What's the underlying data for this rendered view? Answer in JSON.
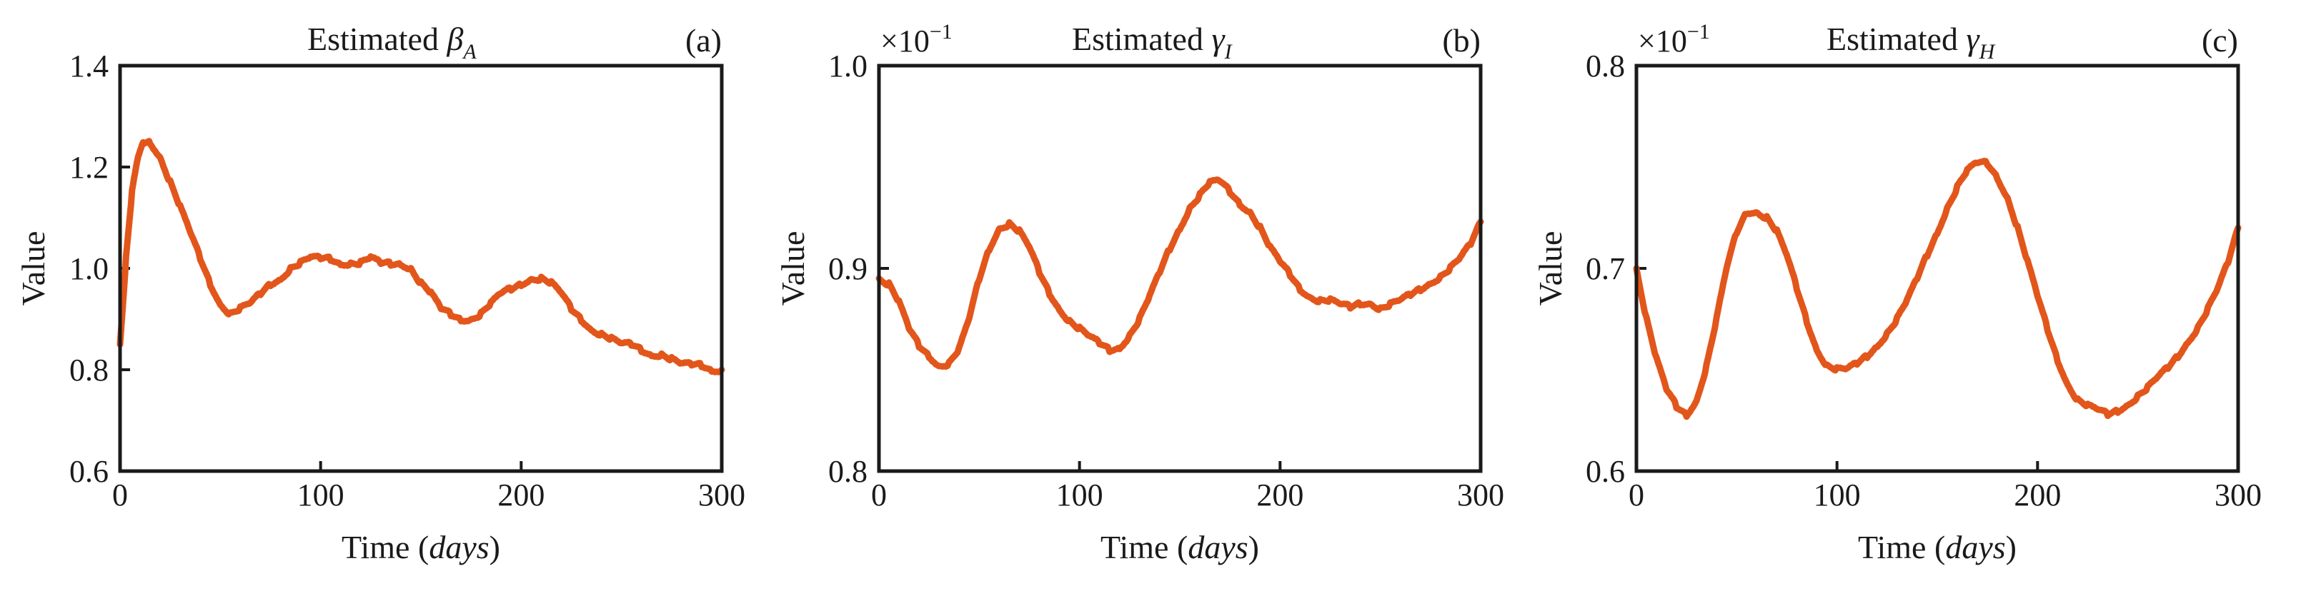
{
  "colors": {
    "series": "#e2561b",
    "axis": "#1a1a1a"
  },
  "chart_data": [
    {
      "type": "line",
      "panel_label": "(a)",
      "title": "Estimated",
      "symbol": "β",
      "symbol_sub": "A",
      "xlabel": "Time",
      "xlabel_unit": "days",
      "ylabel": "Value",
      "multiplier": "",
      "xlim": [
        0,
        300
      ],
      "ylim": [
        0.6,
        1.4
      ],
      "xticks": [
        "0",
        "100",
        "200",
        "300"
      ],
      "yticks": [
        "0.6",
        "0.8",
        "1.0",
        "1.2",
        "1.4"
      ],
      "series": [
        {
          "name": "Estimated βA",
          "x": [
            0,
            3,
            6,
            9,
            12,
            15,
            20,
            25,
            30,
            35,
            40,
            45,
            50,
            55,
            60,
            65,
            70,
            75,
            80,
            85,
            90,
            95,
            100,
            105,
            110,
            115,
            120,
            125,
            130,
            135,
            140,
            145,
            150,
            155,
            160,
            165,
            170,
            175,
            180,
            185,
            190,
            195,
            200,
            205,
            210,
            215,
            220,
            225,
            230,
            235,
            240,
            245,
            250,
            255,
            260,
            265,
            270,
            275,
            280,
            285,
            290,
            295,
            300
          ],
          "values": [
            0.85,
            1.02,
            1.15,
            1.22,
            1.25,
            1.25,
            1.22,
            1.17,
            1.12,
            1.07,
            1.02,
            0.97,
            0.93,
            0.91,
            0.92,
            0.93,
            0.95,
            0.97,
            0.98,
            1.0,
            1.01,
            1.02,
            1.02,
            1.02,
            1.01,
            1.01,
            1.01,
            1.02,
            1.01,
            1.01,
            1.01,
            1.0,
            0.97,
            0.95,
            0.92,
            0.91,
            0.9,
            0.9,
            0.91,
            0.93,
            0.95,
            0.96,
            0.97,
            0.98,
            0.98,
            0.97,
            0.95,
            0.92,
            0.9,
            0.88,
            0.87,
            0.86,
            0.85,
            0.85,
            0.84,
            0.83,
            0.83,
            0.82,
            0.81,
            0.81,
            0.81,
            0.8,
            0.8
          ]
        }
      ]
    },
    {
      "type": "line",
      "panel_label": "(b)",
      "title": "Estimated",
      "symbol": "γ",
      "symbol_sub": "I",
      "xlabel": "Time",
      "xlabel_unit": "days",
      "ylabel": "Value",
      "multiplier": "×10",
      "multiplier_exp": "−1",
      "xlim": [
        0,
        300
      ],
      "ylim": [
        0.8,
        1.0
      ],
      "xticks": [
        "0",
        "100",
        "200",
        "300"
      ],
      "yticks": [
        "0.8",
        "0.9",
        "1.0"
      ],
      "series": [
        {
          "name": "Estimated γI",
          "x": [
            0,
            5,
            10,
            15,
            20,
            25,
            30,
            35,
            40,
            45,
            50,
            55,
            60,
            65,
            70,
            75,
            80,
            85,
            90,
            95,
            100,
            105,
            110,
            115,
            120,
            125,
            130,
            135,
            140,
            145,
            150,
            155,
            160,
            165,
            170,
            175,
            180,
            185,
            190,
            195,
            200,
            205,
            210,
            215,
            220,
            225,
            230,
            235,
            240,
            245,
            250,
            255,
            260,
            265,
            270,
            275,
            280,
            285,
            290,
            295,
            300
          ],
          "values": [
            0.895,
            0.892,
            0.883,
            0.87,
            0.862,
            0.857,
            0.852,
            0.853,
            0.86,
            0.875,
            0.895,
            0.91,
            0.92,
            0.922,
            0.918,
            0.91,
            0.898,
            0.888,
            0.88,
            0.874,
            0.87,
            0.866,
            0.863,
            0.86,
            0.861,
            0.867,
            0.875,
            0.886,
            0.898,
            0.91,
            0.92,
            0.93,
            0.936,
            0.942,
            0.943,
            0.938,
            0.932,
            0.928,
            0.92,
            0.91,
            0.903,
            0.897,
            0.89,
            0.886,
            0.884,
            0.884,
            0.882,
            0.881,
            0.883,
            0.883,
            0.88,
            0.882,
            0.884,
            0.887,
            0.89,
            0.893,
            0.896,
            0.9,
            0.905,
            0.912,
            0.923
          ]
        }
      ]
    },
    {
      "type": "line",
      "panel_label": "(c)",
      "title": "Estimated",
      "symbol": "γ",
      "symbol_sub": "H",
      "xlabel": "Time",
      "xlabel_unit": "days",
      "ylabel": "Value",
      "multiplier": "×10",
      "multiplier_exp": "−1",
      "xlim": [
        0,
        300
      ],
      "ylim": [
        0.6,
        0.8
      ],
      "xticks": [
        "0",
        "100",
        "200",
        "300"
      ],
      "yticks": [
        "0.6",
        "0.7",
        "0.8"
      ],
      "series": [
        {
          "name": "Estimated γH",
          "x": [
            0,
            5,
            10,
            15,
            20,
            25,
            30,
            35,
            40,
            45,
            50,
            55,
            60,
            65,
            70,
            75,
            80,
            85,
            90,
            95,
            100,
            105,
            110,
            115,
            120,
            125,
            130,
            135,
            140,
            145,
            150,
            155,
            160,
            165,
            170,
            175,
            180,
            185,
            190,
            195,
            200,
            205,
            210,
            215,
            220,
            225,
            230,
            235,
            240,
            245,
            250,
            255,
            260,
            265,
            270,
            275,
            280,
            285,
            290,
            295,
            300
          ],
          "values": [
            0.7,
            0.675,
            0.655,
            0.64,
            0.632,
            0.628,
            0.635,
            0.652,
            0.675,
            0.7,
            0.718,
            0.728,
            0.728,
            0.725,
            0.718,
            0.706,
            0.69,
            0.674,
            0.66,
            0.652,
            0.65,
            0.65,
            0.653,
            0.657,
            0.662,
            0.668,
            0.675,
            0.684,
            0.695,
            0.707,
            0.718,
            0.73,
            0.74,
            0.748,
            0.752,
            0.752,
            0.745,
            0.735,
            0.72,
            0.703,
            0.686,
            0.67,
            0.655,
            0.643,
            0.635,
            0.632,
            0.63,
            0.628,
            0.63,
            0.633,
            0.637,
            0.641,
            0.646,
            0.651,
            0.657,
            0.664,
            0.671,
            0.68,
            0.69,
            0.703,
            0.72
          ]
        }
      ]
    }
  ]
}
